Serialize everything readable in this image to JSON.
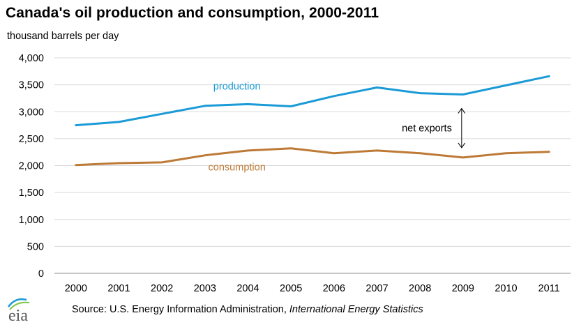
{
  "title": "Canada's oil production and consumption, 2000-2011",
  "chart_data": {
    "type": "line",
    "title": "Canada's oil production and consumption, 2000-2011",
    "ylabel": "thousand barrels per day",
    "xlabel": "",
    "categories": [
      "2000",
      "2001",
      "2002",
      "2003",
      "2004",
      "2005",
      "2006",
      "2007",
      "2008",
      "2009",
      "2010",
      "2011"
    ],
    "ylim": [
      0,
      4000
    ],
    "yticks": [
      0,
      500,
      1000,
      1500,
      2000,
      2500,
      3000,
      3500,
      4000
    ],
    "ytick_labels": [
      "0",
      "500",
      "1,000",
      "1,500",
      "2,000",
      "2,500",
      "3,000",
      "3,500",
      "4,000"
    ],
    "grid": true,
    "series": [
      {
        "name": "production",
        "color": "#1a9ad6",
        "values": [
          2750,
          2810,
          2960,
          3110,
          3140,
          3100,
          3290,
          3450,
          3345,
          3320,
          3490,
          3660
        ]
      },
      {
        "name": "consumption",
        "color": "#bd7a36",
        "values": [
          2010,
          2045,
          2060,
          2190,
          2280,
          2320,
          2230,
          2280,
          2230,
          2150,
          2230,
          2255
        ]
      }
    ],
    "annotation": {
      "text": "net exports",
      "category": "2009"
    }
  },
  "source": {
    "prefix": "Source: U.S. Energy Information Administration, ",
    "italic": "International Energy Statistics"
  },
  "logo_text": "eia"
}
